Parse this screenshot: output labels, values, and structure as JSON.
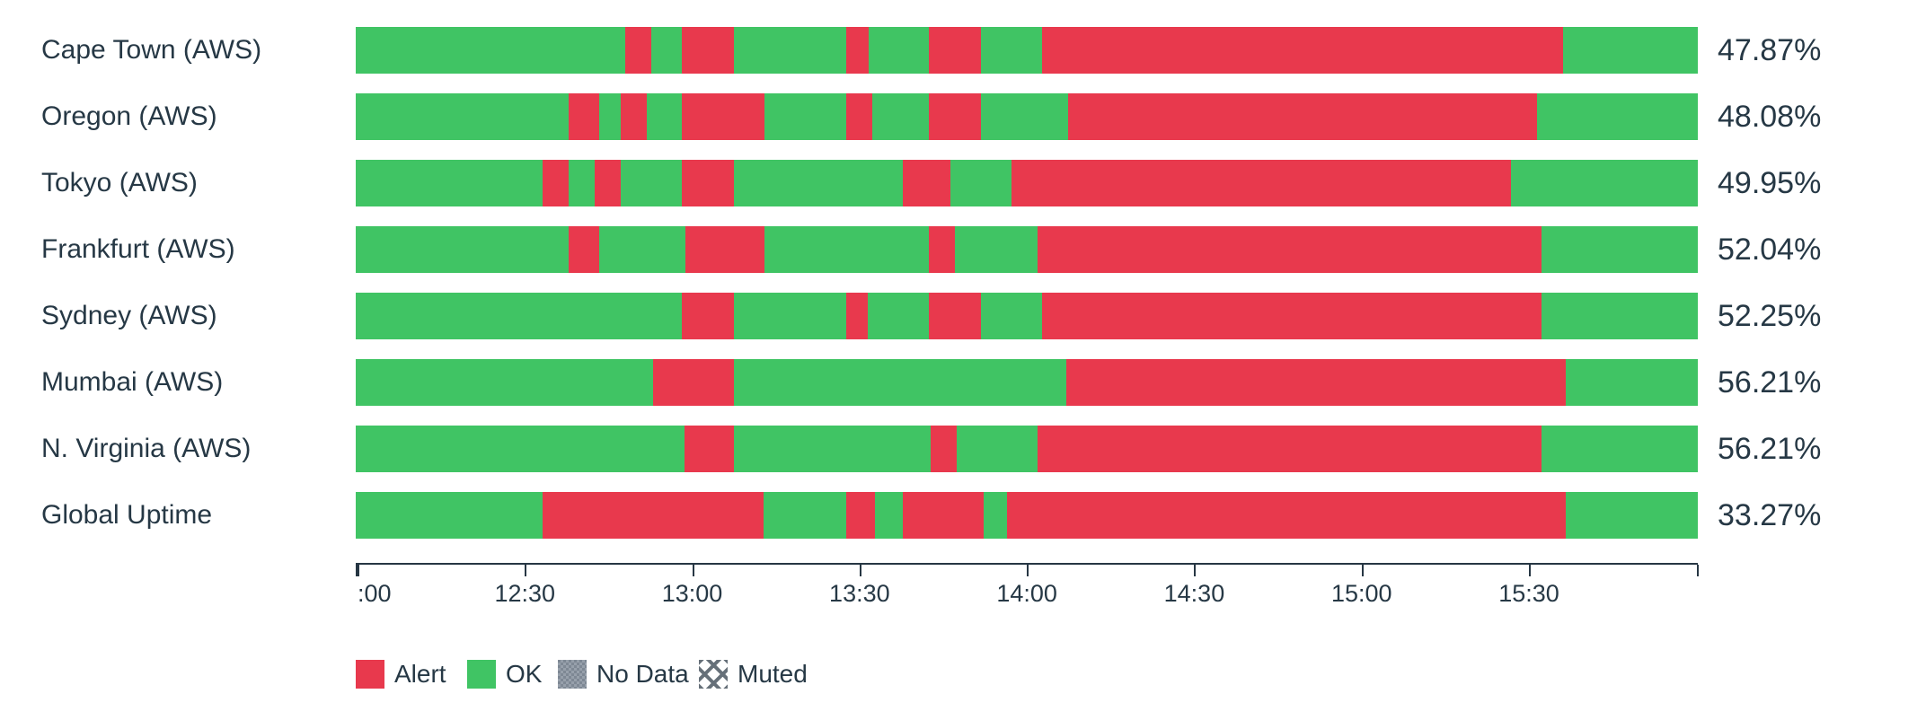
{
  "chart_data": {
    "type": "status-timeline",
    "title": "",
    "x_axis": {
      "visible_tick_labels": [
        ":00",
        "12:30",
        "13:00",
        "13:30",
        "14:00",
        "14:30",
        "15:00",
        "15:30"
      ],
      "ticks": [
        {
          "label": ":00",
          "f": 0.0013
        },
        {
          "label": "12:30",
          "f": 0.126
        },
        {
          "label": "13:00",
          "f": 0.2507
        },
        {
          "label": "13:30",
          "f": 0.3754
        },
        {
          "label": "14:00",
          "f": 0.5001
        },
        {
          "label": "14:30",
          "f": 0.6248
        },
        {
          "label": "15:00",
          "f": 0.7495
        },
        {
          "label": "15:30",
          "f": 0.8742
        },
        {
          "label": "",
          "f": 0.999
        }
      ],
      "grid": false
    },
    "legend_position": "bottom-left",
    "legend": [
      {
        "label": "Alert",
        "type": "alert",
        "color": "#e8394d"
      },
      {
        "label": "OK",
        "type": "ok",
        "color": "#40c464"
      },
      {
        "label": "No Data",
        "type": "nodata",
        "color": "#7e8894"
      },
      {
        "label": "Muted",
        "type": "muted",
        "color": "#667079"
      }
    ],
    "rows": [
      {
        "label": "Cape Town (AWS)",
        "uptime": "47.87%",
        "segments": [
          [
            "ok",
            20.06
          ],
          [
            "alert",
            1.94
          ],
          [
            "ok",
            2.27
          ],
          [
            "alert",
            3.88
          ],
          [
            "ok",
            8.41
          ],
          [
            "alert",
            1.62
          ],
          [
            "ok",
            4.53
          ],
          [
            "alert",
            3.88
          ],
          [
            "ok",
            4.53
          ],
          [
            "alert",
            38.83
          ],
          [
            "ok",
            10.03
          ]
        ]
      },
      {
        "label": "Oregon (AWS)",
        "uptime": "48.08%",
        "segments": [
          [
            "ok",
            15.86
          ],
          [
            "alert",
            2.27
          ],
          [
            "ok",
            1.62
          ],
          [
            "alert",
            1.94
          ],
          [
            "ok",
            2.59
          ],
          [
            "alert",
            6.15
          ],
          [
            "ok",
            6.15
          ],
          [
            "alert",
            1.94
          ],
          [
            "ok",
            4.21
          ],
          [
            "alert",
            3.88
          ],
          [
            "ok",
            6.47
          ],
          [
            "alert",
            34.95
          ],
          [
            "ok",
            11.97
          ]
        ]
      },
      {
        "label": "Tokyo (AWS)",
        "uptime": "49.95%",
        "segments": [
          [
            "ok",
            13.92
          ],
          [
            "alert",
            1.94
          ],
          [
            "ok",
            1.94
          ],
          [
            "alert",
            1.94
          ],
          [
            "ok",
            4.53
          ],
          [
            "alert",
            3.88
          ],
          [
            "ok",
            12.62
          ],
          [
            "alert",
            3.56
          ],
          [
            "ok",
            4.53
          ],
          [
            "alert",
            37.22
          ],
          [
            "ok",
            13.92
          ]
        ]
      },
      {
        "label": "Frankfurt (AWS)",
        "uptime": "52.04%",
        "segments": [
          [
            "ok",
            15.86
          ],
          [
            "alert",
            2.27
          ],
          [
            "ok",
            6.47
          ],
          [
            "alert",
            5.83
          ],
          [
            "ok",
            12.3
          ],
          [
            "alert",
            1.94
          ],
          [
            "ok",
            6.15
          ],
          [
            "alert",
            37.54
          ],
          [
            "ok",
            11.65
          ]
        ]
      },
      {
        "label": "Sydney (AWS)",
        "uptime": "52.25%",
        "segments": [
          [
            "ok",
            24.27
          ],
          [
            "alert",
            3.88
          ],
          [
            "ok",
            8.41
          ],
          [
            "alert",
            1.62
          ],
          [
            "ok",
            4.53
          ],
          [
            "alert",
            3.88
          ],
          [
            "ok",
            4.53
          ],
          [
            "alert",
            37.22
          ],
          [
            "ok",
            11.65
          ]
        ]
      },
      {
        "label": "Mumbai (AWS)",
        "uptime": "56.21%",
        "segments": [
          [
            "ok",
            22.14
          ],
          [
            "alert",
            6.02
          ],
          [
            "ok",
            24.79
          ],
          [
            "alert",
            37.22
          ],
          [
            "ok",
            9.84
          ]
        ]
      },
      {
        "label": "N. Virginia (AWS)",
        "uptime": "56.21%",
        "segments": [
          [
            "ok",
            24.47
          ],
          [
            "alert",
            3.69
          ],
          [
            "ok",
            14.69
          ],
          [
            "alert",
            1.94
          ],
          [
            "ok",
            6.02
          ],
          [
            "alert",
            37.54
          ],
          [
            "ok",
            11.65
          ]
        ]
      },
      {
        "label": "Global Uptime",
        "uptime": "33.27%",
        "segments": [
          [
            "ok",
            13.92
          ],
          [
            "alert",
            16.5
          ],
          [
            "ok",
            6.15
          ],
          [
            "alert",
            2.14
          ],
          [
            "ok",
            2.07
          ],
          [
            "alert",
            6.02
          ],
          [
            "ok",
            1.75
          ],
          [
            "alert",
            41.62
          ],
          [
            "ok",
            9.84
          ]
        ]
      }
    ],
    "colors": {
      "ok": "#40c464",
      "alert": "#e8394d",
      "nodata": "#7e8894",
      "text": "#263845",
      "axis": "#273744",
      "background": "#ffffff"
    }
  }
}
